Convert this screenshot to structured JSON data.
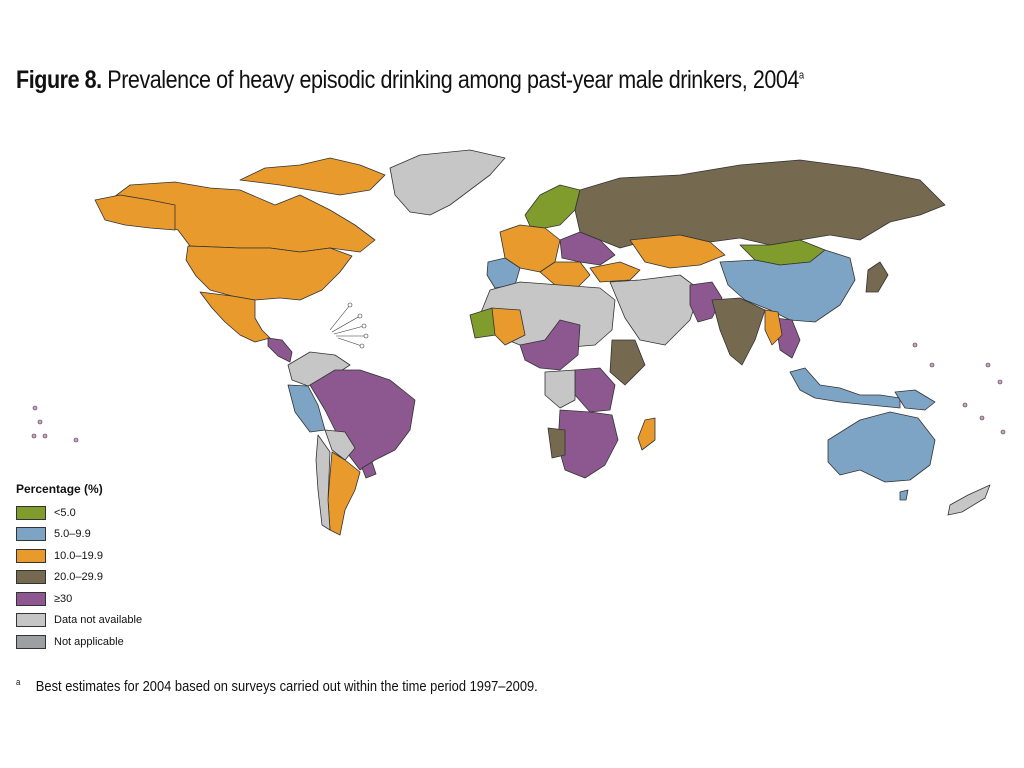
{
  "title": {
    "label": "Figure 8.",
    "text": "Prevalence of heavy episodic drinking among past-year male drinkers, 2004",
    "sup": "a"
  },
  "colors": {
    "lt5": "#7f9c2d",
    "c5_10": "#7ea4c5",
    "c10_20": "#e89a2c",
    "c20_30": "#75694f",
    "ge30": "#8d5890",
    "na": "#c6c6c7",
    "notapp": "#9d9fa2",
    "border": "#333333"
  },
  "legend": {
    "title": "Percentage (%)",
    "items": [
      {
        "label": "<5.0",
        "color": "#7f9c2d"
      },
      {
        "label": "5.0–9.9",
        "color": "#7ea4c5"
      },
      {
        "label": "10.0–19.9",
        "color": "#e89a2c"
      },
      {
        "label": "20.0–29.9",
        "color": "#75694f"
      },
      {
        "label": "≥30",
        "color": "#8d5890"
      },
      {
        "label": "Data not available",
        "color": "#c6c6c7"
      },
      {
        "label": "Not applicable",
        "color": "#9d9fa2"
      }
    ]
  },
  "footnote": {
    "mark": "a",
    "text": "Best estimates for 2004 based on surveys carried out within the time period 1997–2009."
  }
}
